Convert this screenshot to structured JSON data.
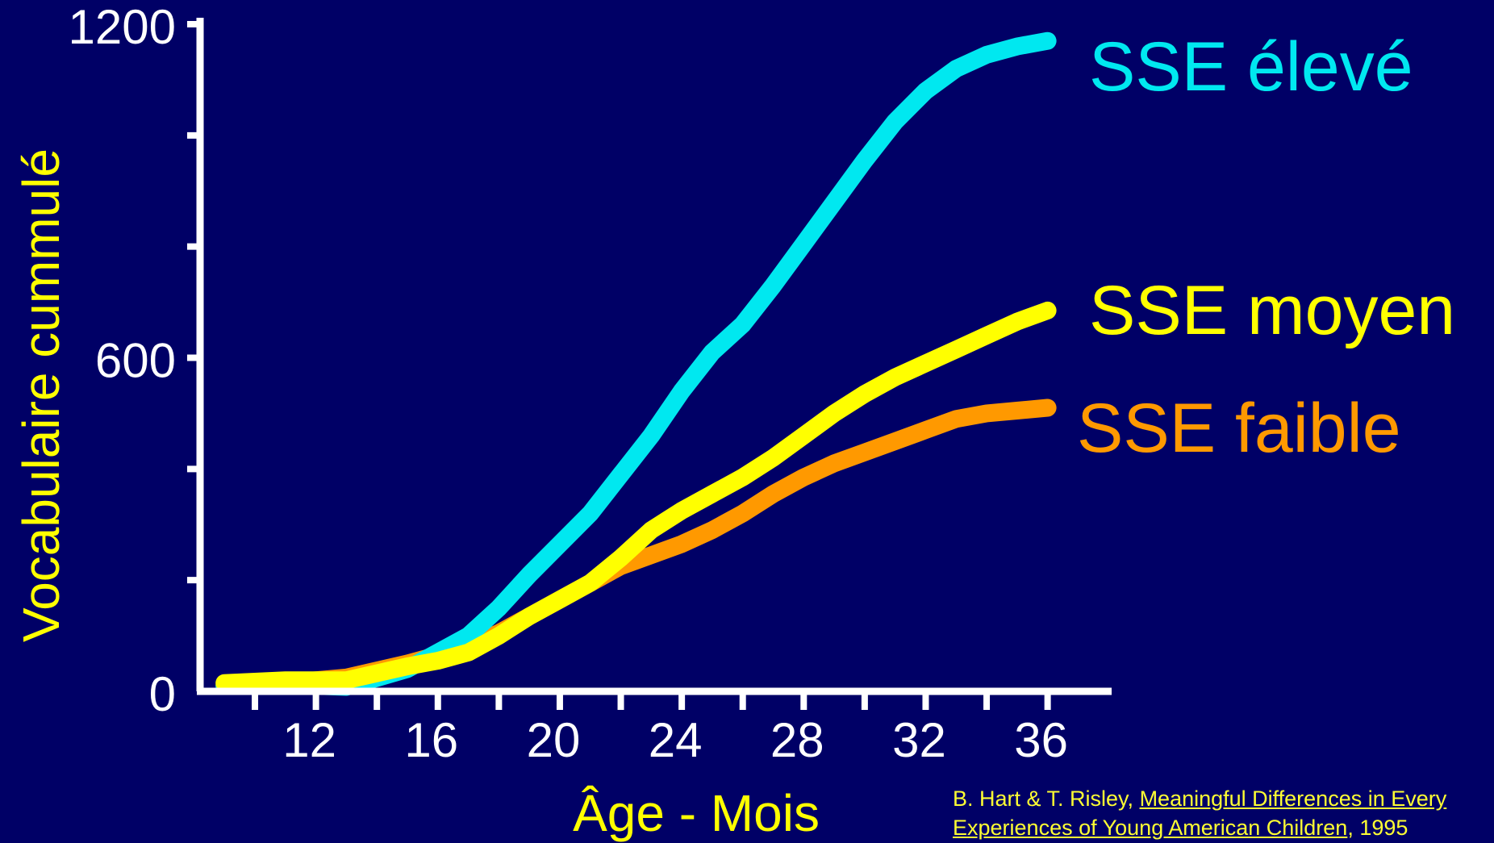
{
  "chart_data": {
    "type": "line",
    "xlabel": "Âge - Mois",
    "ylabel": "Vocabulaire cummulé",
    "xlim": [
      8.2,
      38.1
    ],
    "ylim": [
      0,
      1200
    ],
    "x_ticks": [
      12,
      16,
      20,
      24,
      28,
      32,
      36
    ],
    "x_tick_labels": [
      "12",
      "16",
      "20",
      "24",
      "28",
      "32",
      "36"
    ],
    "y_ticks": [
      0,
      600,
      1200
    ],
    "y_tick_labels": [
      "0",
      "600",
      "1200"
    ],
    "y_minor_ticks": [
      200,
      400,
      800,
      1000
    ],
    "grid": false,
    "legend": "right, labels placed at line ends",
    "series": [
      {
        "name": "SSE élevé",
        "color": "#00e8f0",
        "x": [
          9,
          11,
          13,
          15,
          16,
          17,
          18,
          19,
          20,
          21,
          22,
          23,
          24,
          25,
          26,
          27,
          28,
          29,
          30,
          31,
          32,
          33,
          34,
          35,
          36
        ],
        "y": [
          10,
          12,
          8,
          40,
          70,
          100,
          150,
          210,
          265,
          320,
          390,
          460,
          540,
          610,
          660,
          730,
          805,
          880,
          955,
          1025,
          1080,
          1120,
          1145,
          1160,
          1170
        ]
      },
      {
        "name": "SSE moyen",
        "color": "#ffff00",
        "x": [
          9,
          11,
          13,
          15,
          16,
          17,
          18,
          19,
          20,
          21,
          22,
          23,
          24,
          25,
          26,
          27,
          28,
          29,
          30,
          31,
          32,
          33,
          34,
          35,
          36
        ],
        "y": [
          15,
          20,
          20,
          45,
          55,
          70,
          100,
          135,
          165,
          195,
          240,
          290,
          325,
          355,
          385,
          420,
          460,
          500,
          535,
          565,
          590,
          615,
          640,
          665,
          685
        ]
      },
      {
        "name": "SSE faible",
        "color": "#ff9900",
        "x": [
          9,
          11,
          13,
          15,
          16,
          17,
          18,
          19,
          20,
          21,
          22,
          23,
          24,
          25,
          26,
          27,
          28,
          29,
          30,
          31,
          32,
          33,
          34,
          35,
          36
        ],
        "y": [
          10,
          15,
          25,
          50,
          65,
          80,
          105,
          135,
          165,
          195,
          225,
          245,
          265,
          290,
          320,
          355,
          385,
          410,
          430,
          450,
          470,
          490,
          500,
          505,
          510
        ]
      }
    ],
    "source": {
      "authors": "B. Hart & T. Risley, ",
      "title_line1": "Meaningful Differences in Every",
      "title_line2": "Experiences of Young American Children",
      "year": ", 1995"
    }
  }
}
